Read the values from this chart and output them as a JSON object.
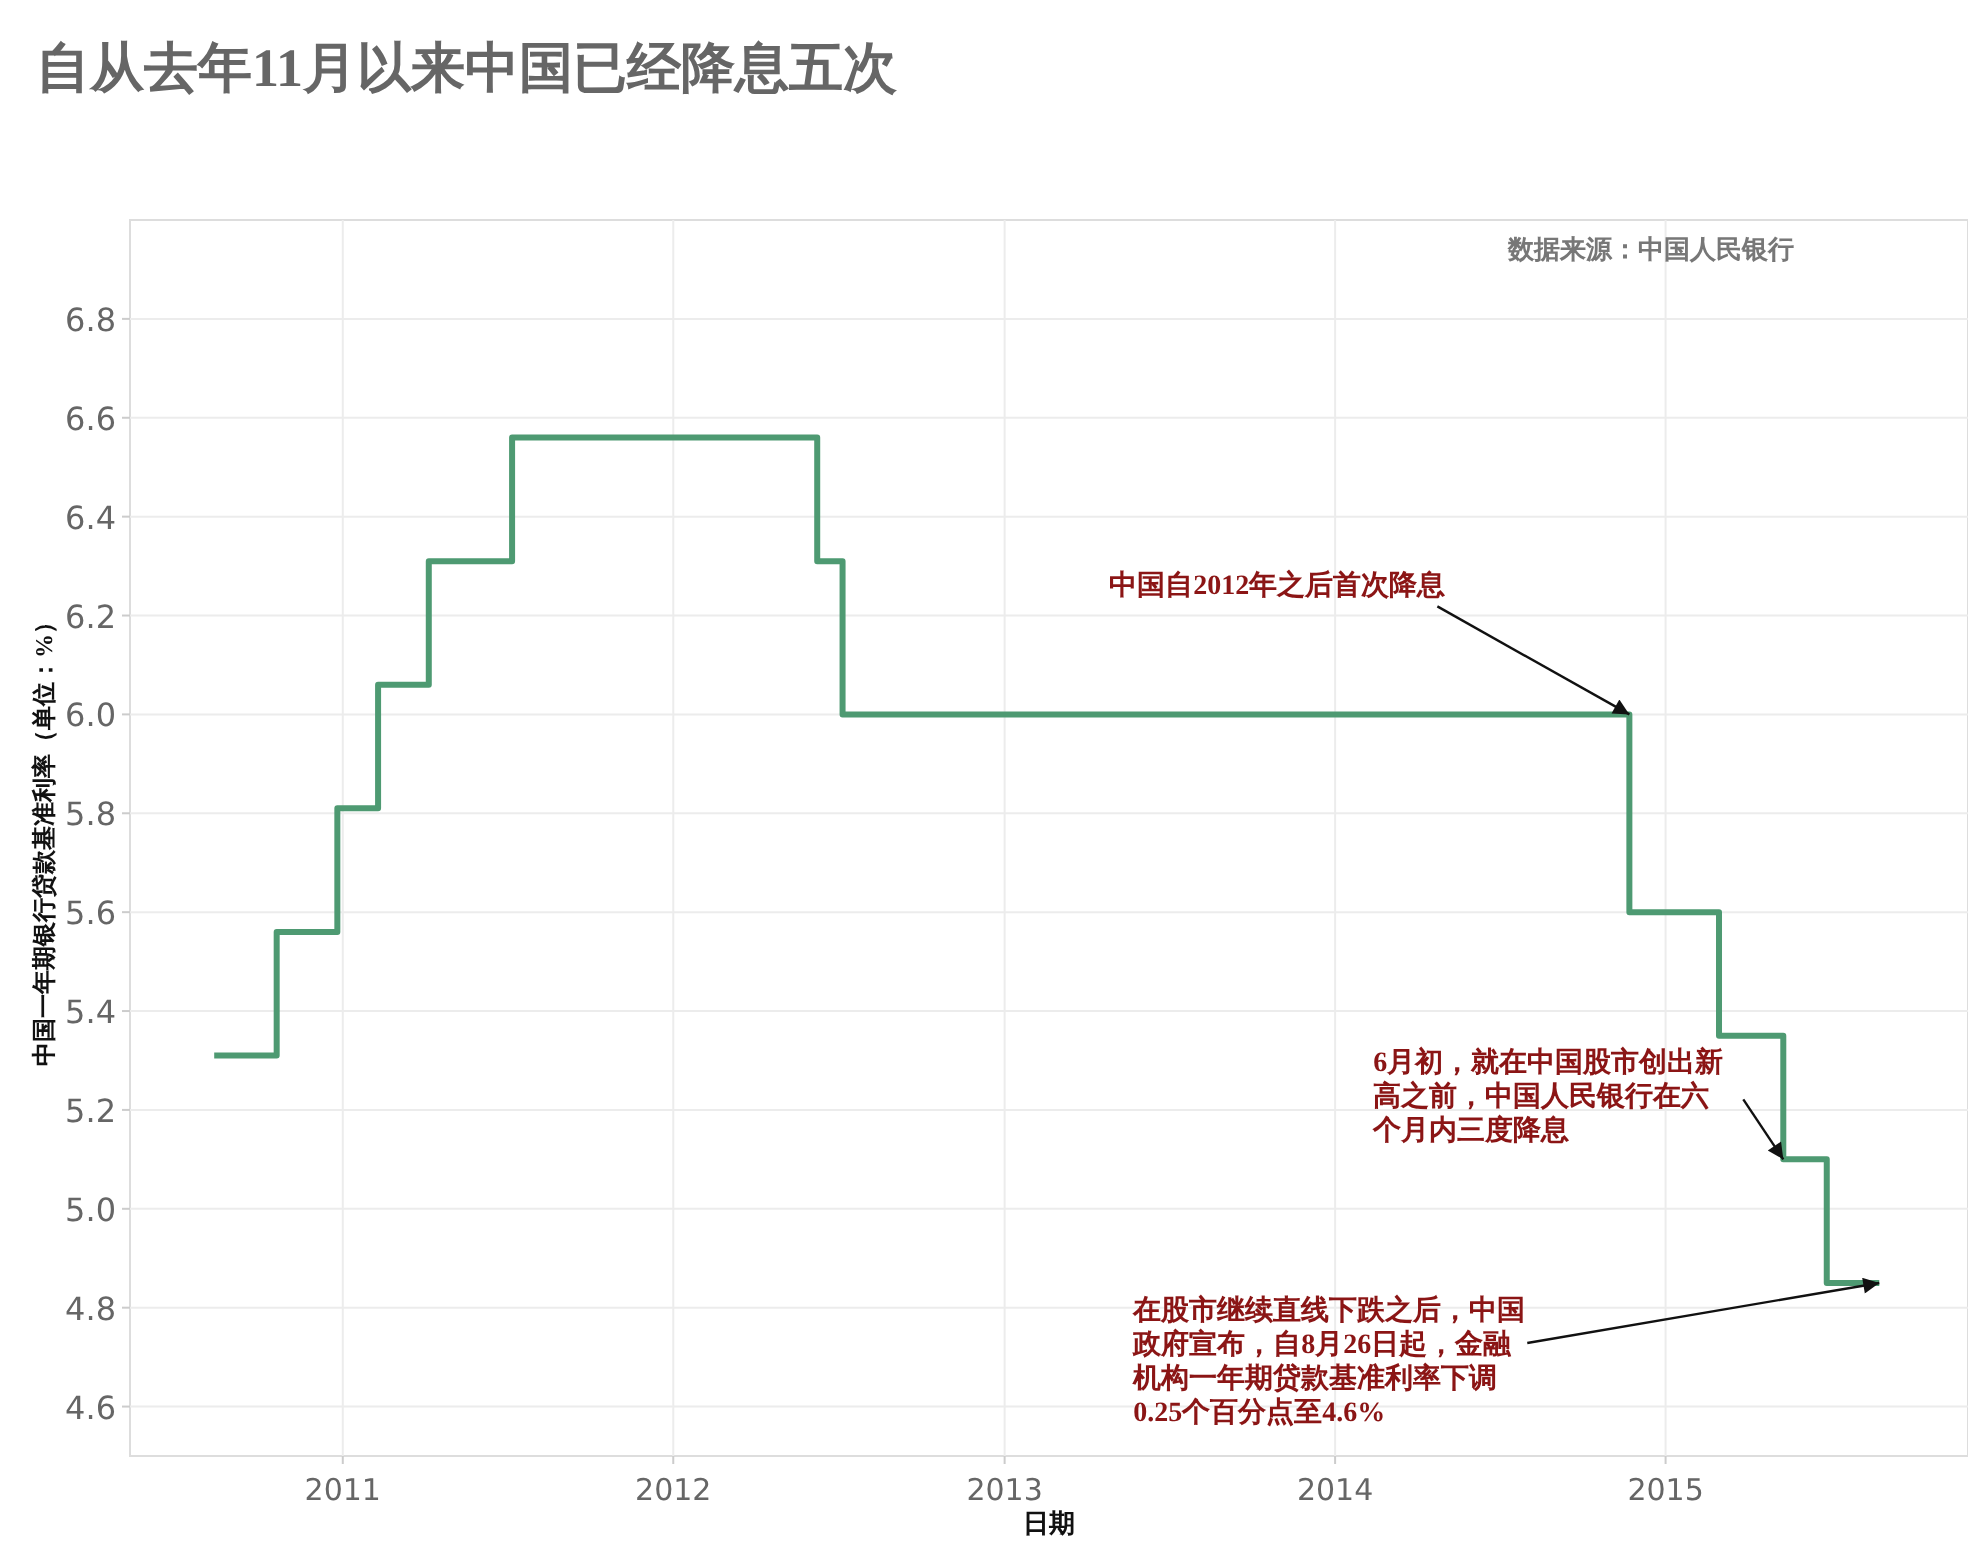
{
  "chart_data": {
    "type": "step",
    "title": "自从去年11月以来中国已经降息五次",
    "xlabel": "日期",
    "ylabel": "中国一年期银行贷款基准利率（单位：%）",
    "x": [
      "2010-08-12",
      "2010-10-20",
      "2010-12-26",
      "2011-02-09",
      "2011-04-06",
      "2011-07-07",
      "2012-06-08",
      "2012-07-06",
      "2014-11-22",
      "2015-03-01",
      "2015-05-11",
      "2015-06-28",
      "2015-08-25"
    ],
    "series": [
      {
        "color": "#4e9a72",
        "values": [
          5.31,
          5.56,
          5.81,
          6.06,
          6.31,
          6.56,
          6.31,
          6.0,
          5.6,
          5.35,
          5.1,
          4.85,
          4.85
        ]
      }
    ],
    "xlim": [
      "2010-05-11",
      "2015-12-01"
    ],
    "xticks": [
      {
        "value": "2011-01-01",
        "label": "2011"
      },
      {
        "value": "2012-01-01",
        "label": "2012"
      },
      {
        "value": "2013-01-01",
        "label": "2013"
      },
      {
        "value": "2014-01-01",
        "label": "2014"
      },
      {
        "value": "2015-01-01",
        "label": "2015"
      }
    ],
    "ylim": [
      4.5,
      7.0
    ],
    "yticks": [
      4.6,
      4.8,
      {
        "value": 5,
        "label": "5.0"
      },
      5.2,
      5.4,
      5.6,
      5.8,
      {
        "value": 6,
        "label": "6.0"
      },
      6.2,
      6.4,
      6.6,
      6.8
    ],
    "grid": true,
    "line_style": "solid",
    "marker": "none",
    "annotations": [
      "数据来源：中国人民银行",
      {
        "text": "中国自2012年之后首次降息",
        "x": "2014-11-22",
        "y": 6.0
      },
      {
        "text": "6月初，就在中国股市创出新高之前，中国人民银行在六个月内三度降息",
        "x": "2015-05-11",
        "y": 5.1
      },
      {
        "text": "在股市继续直线下跌之后，中国政府宣布，自8月26日起，金融机构一年期贷款基准利率下调0.25个百分点至4.6%",
        "x": "2015-08-25",
        "y": 4.85
      }
    ]
  }
}
